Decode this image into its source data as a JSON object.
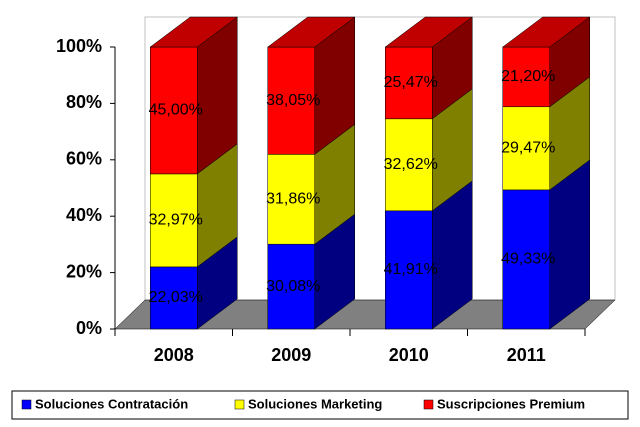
{
  "chart_data": {
    "type": "stacked-bar-3d",
    "categories": [
      "2008",
      "2009",
      "2010",
      "2011"
    ],
    "series": [
      {
        "name": "Soluciones Contratación",
        "color": "#0000ff",
        "side_color": "#000080",
        "values": [
          22.03,
          30.08,
          41.91,
          49.33
        ],
        "value_labels": [
          "22,03%",
          "30,08%",
          "41,91%",
          "49,33%"
        ]
      },
      {
        "name": "Soluciones Marketing",
        "color": "#ffff00",
        "side_color": "#808000",
        "values": [
          32.97,
          31.86,
          32.62,
          29.47
        ],
        "value_labels": [
          "32,97%",
          "31,86%",
          "32,62%",
          "29,47%"
        ]
      },
      {
        "name": "Suscripciones Premium",
        "color": "#ff0000",
        "side_color": "#800000",
        "values": [
          45.0,
          38.05,
          25.47,
          21.2
        ],
        "value_labels": [
          "45,00%",
          "38,05%",
          "25,47%",
          "21,20%"
        ]
      }
    ],
    "ylim": [
      0,
      100
    ],
    "yticks": [
      {
        "value": 0,
        "label": "0%"
      },
      {
        "value": 20,
        "label": "20%"
      },
      {
        "value": 40,
        "label": "40%"
      },
      {
        "value": 60,
        "label": "60%"
      },
      {
        "value": 80,
        "label": "80%"
      },
      {
        "value": 100,
        "label": "100%"
      }
    ],
    "legend": "bottom"
  }
}
